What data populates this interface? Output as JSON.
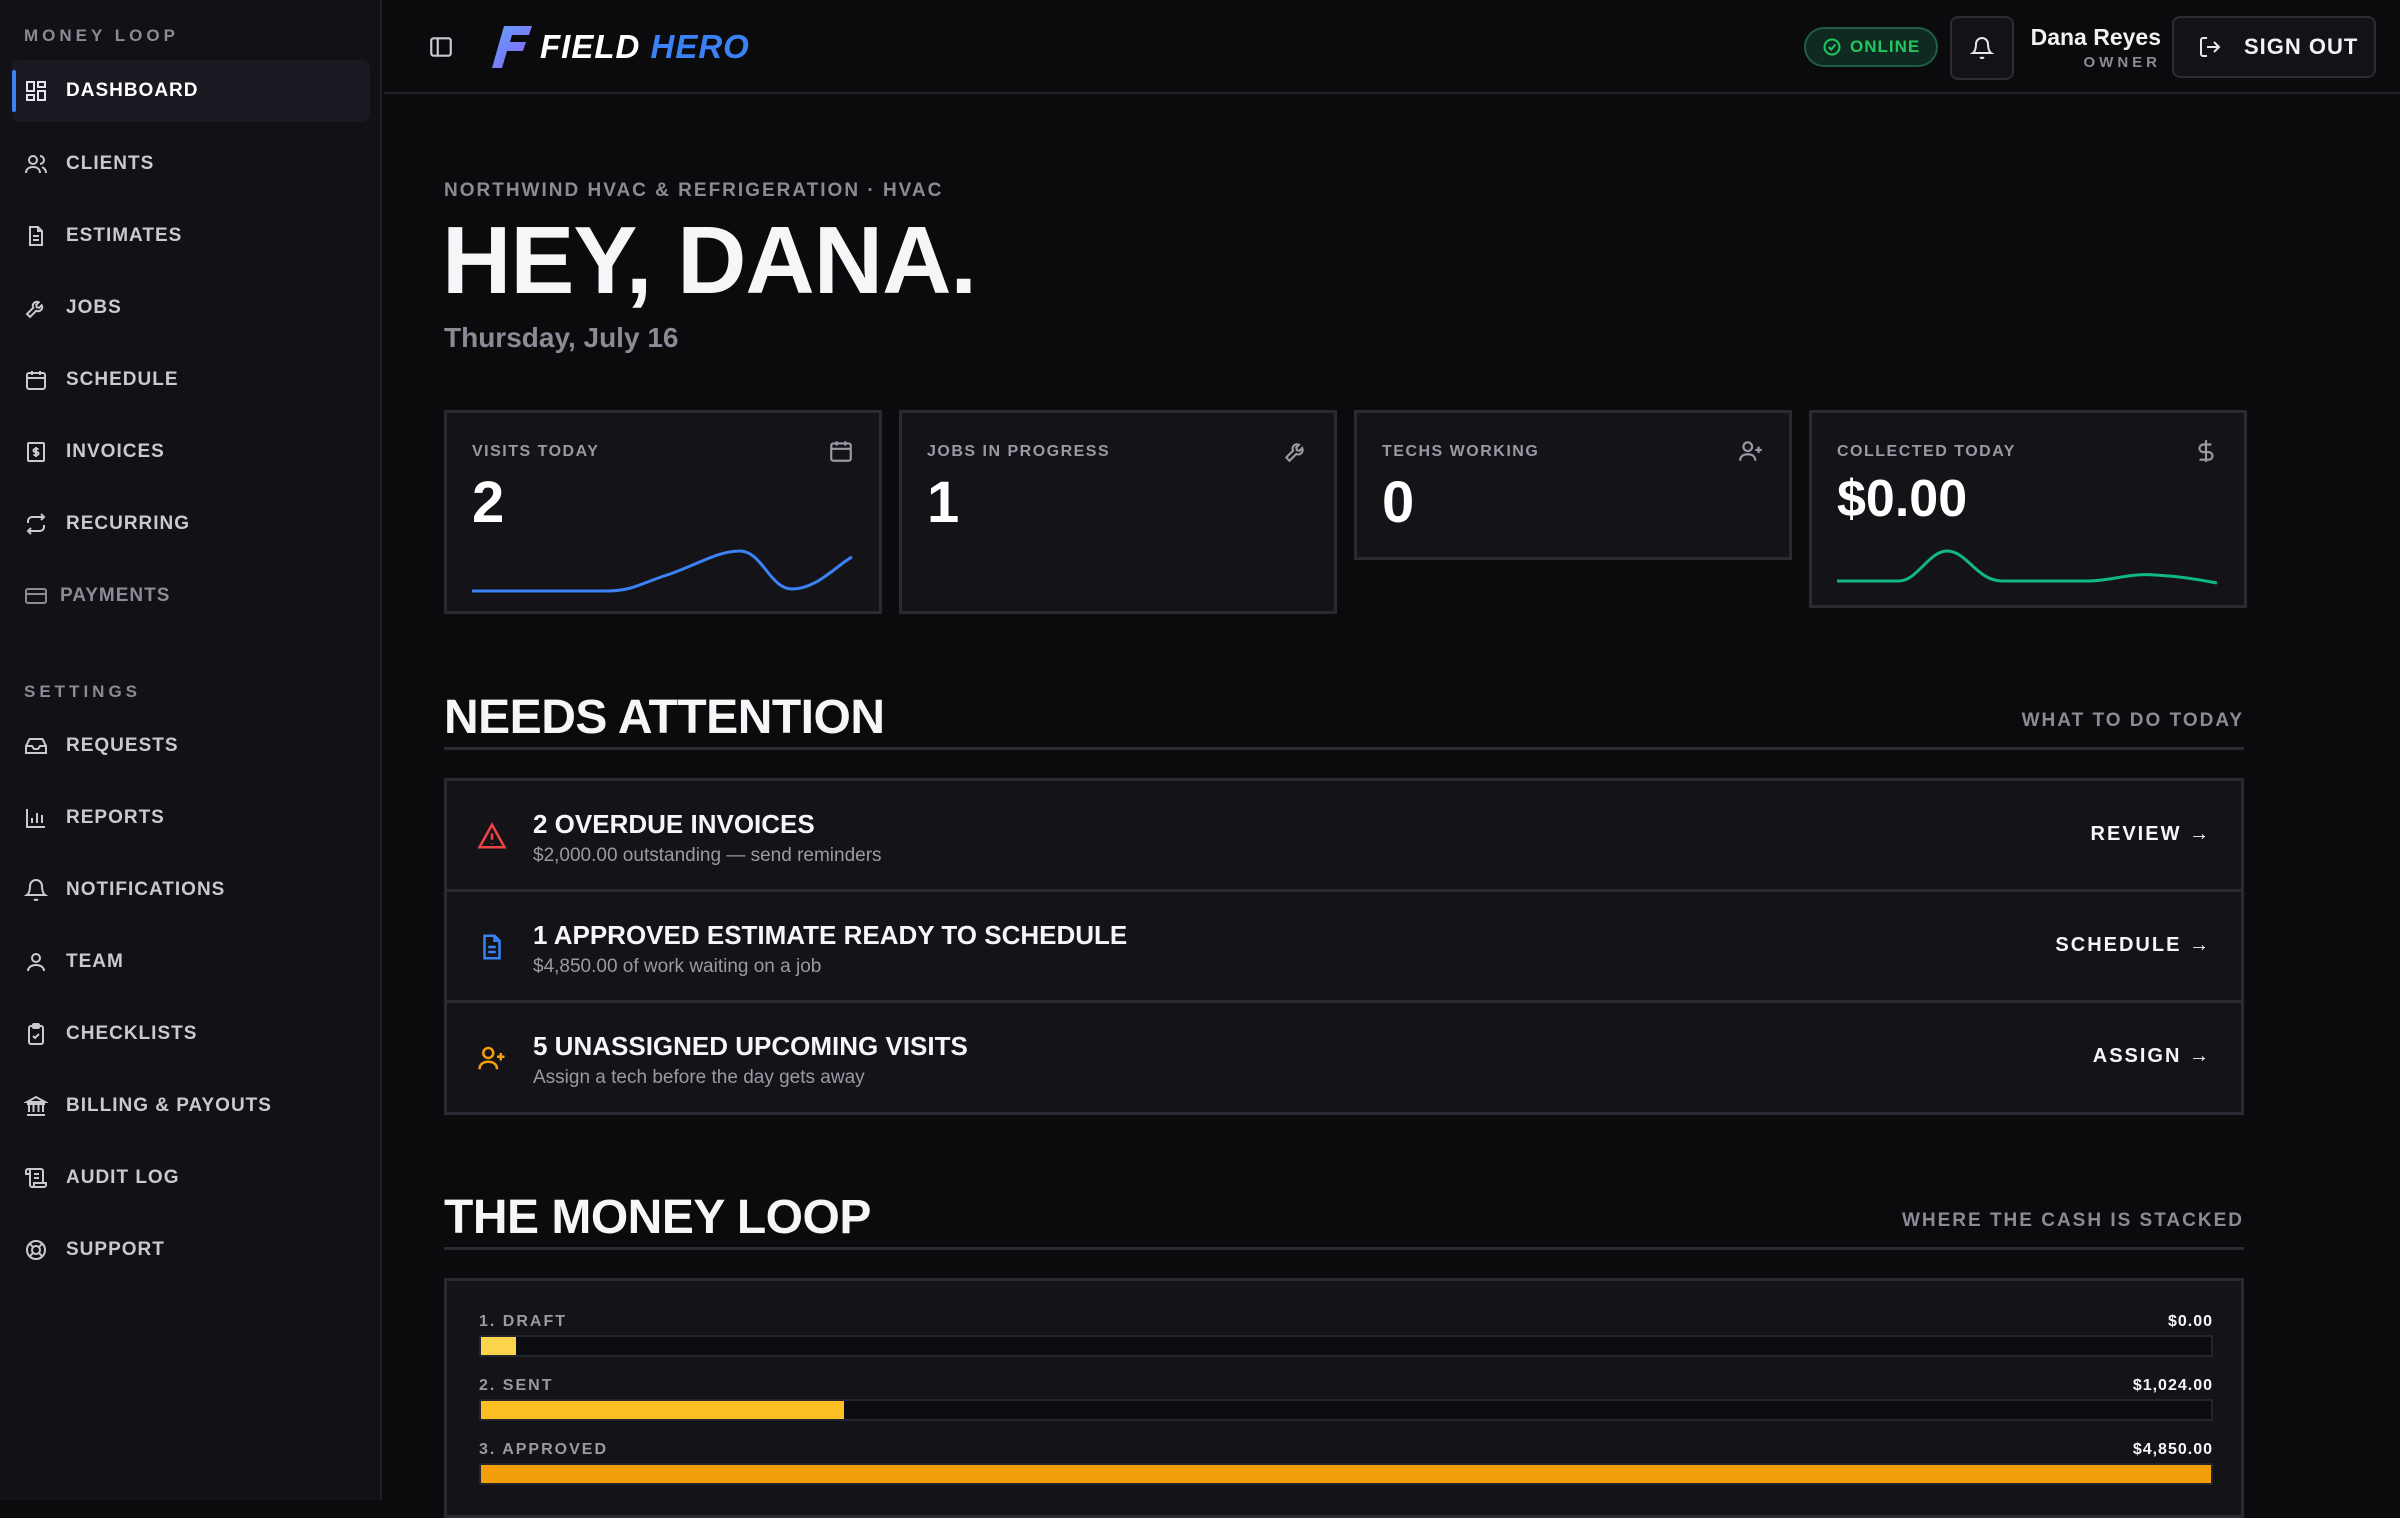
{
  "sidebar": {
    "section_money": "MONEY LOOP",
    "section_settings": "SETTINGS",
    "items": [
      {
        "label": "DASHBOARD"
      },
      {
        "label": "CLIENTS"
      },
      {
        "label": "ESTIMATES"
      },
      {
        "label": "JOBS"
      },
      {
        "label": "SCHEDULE"
      },
      {
        "label": "INVOICES"
      },
      {
        "label": "RECURRING"
      },
      {
        "label": "PAYMENTS"
      }
    ],
    "settings_items": [
      {
        "label": "REQUESTS"
      },
      {
        "label": "REPORTS"
      },
      {
        "label": "NOTIFICATIONS"
      },
      {
        "label": "TEAM"
      },
      {
        "label": "CHECKLISTS"
      },
      {
        "label": "BILLING & PAYOUTS"
      },
      {
        "label": "AUDIT LOG"
      },
      {
        "label": "SUPPORT"
      }
    ]
  },
  "header": {
    "logo_text_white": "FIELD",
    "logo_text_blue": "HERO",
    "status": "ONLINE",
    "user_name": "Dana Reyes",
    "user_role": "OWNER",
    "sign_out": "SIGN OUT"
  },
  "main": {
    "company": "NORTHWIND HVAC & REFRIGERATION · HVAC",
    "greeting": "HEY, DANA.",
    "date": "Thursday, July 16",
    "stats": [
      {
        "label": "VISITS TODAY",
        "value": "2",
        "icon": "calendar-icon"
      },
      {
        "label": "JOBS IN PROGRESS",
        "value": "1",
        "icon": "wrench-icon"
      },
      {
        "label": "TECHS WORKING",
        "value": "0",
        "icon": "user-plus-icon"
      },
      {
        "label": "COLLECTED TODAY",
        "value": "$0.00",
        "icon": "dollar-icon"
      }
    ],
    "attention": {
      "title": "NEEDS ATTENTION",
      "subtitle": "WHAT TO DO TODAY",
      "items": [
        {
          "title": "2 OVERDUE INVOICES",
          "desc": "$2,000.00 outstanding — send reminders",
          "action": "REVIEW →",
          "icon": "alert-triangle-icon",
          "color": "#ef4444"
        },
        {
          "title": "1 APPROVED ESTIMATE READY TO SCHEDULE",
          "desc": "$4,850.00 of work waiting on a job",
          "action": "SCHEDULE →",
          "icon": "document-icon",
          "color": "#3b82f6"
        },
        {
          "title": "5 UNASSIGNED UPCOMING VISITS",
          "desc": "Assign a tech before the day gets away",
          "action": "ASSIGN →",
          "icon": "user-plus-icon",
          "color": "#f59e0b"
        }
      ]
    },
    "money_loop": {
      "title": "THE MONEY LOOP",
      "subtitle": "WHERE THE CASH IS STACKED",
      "stages": [
        {
          "name": "1. DRAFT",
          "amount": "$0.00",
          "fill": 0.02,
          "color": "#fcd34d"
        },
        {
          "name": "2. SENT",
          "amount": "$1,024.00",
          "fill": 0.21,
          "color": "#fbbf24"
        },
        {
          "name": "3. APPROVED",
          "amount": "$4,850.00",
          "fill": 1.0,
          "color": "#f59e0b"
        }
      ]
    }
  },
  "colors": {
    "accent": "#3b82f6",
    "success": "#22c55e",
    "danger": "#ef4444",
    "warning": "#f59e0b"
  }
}
